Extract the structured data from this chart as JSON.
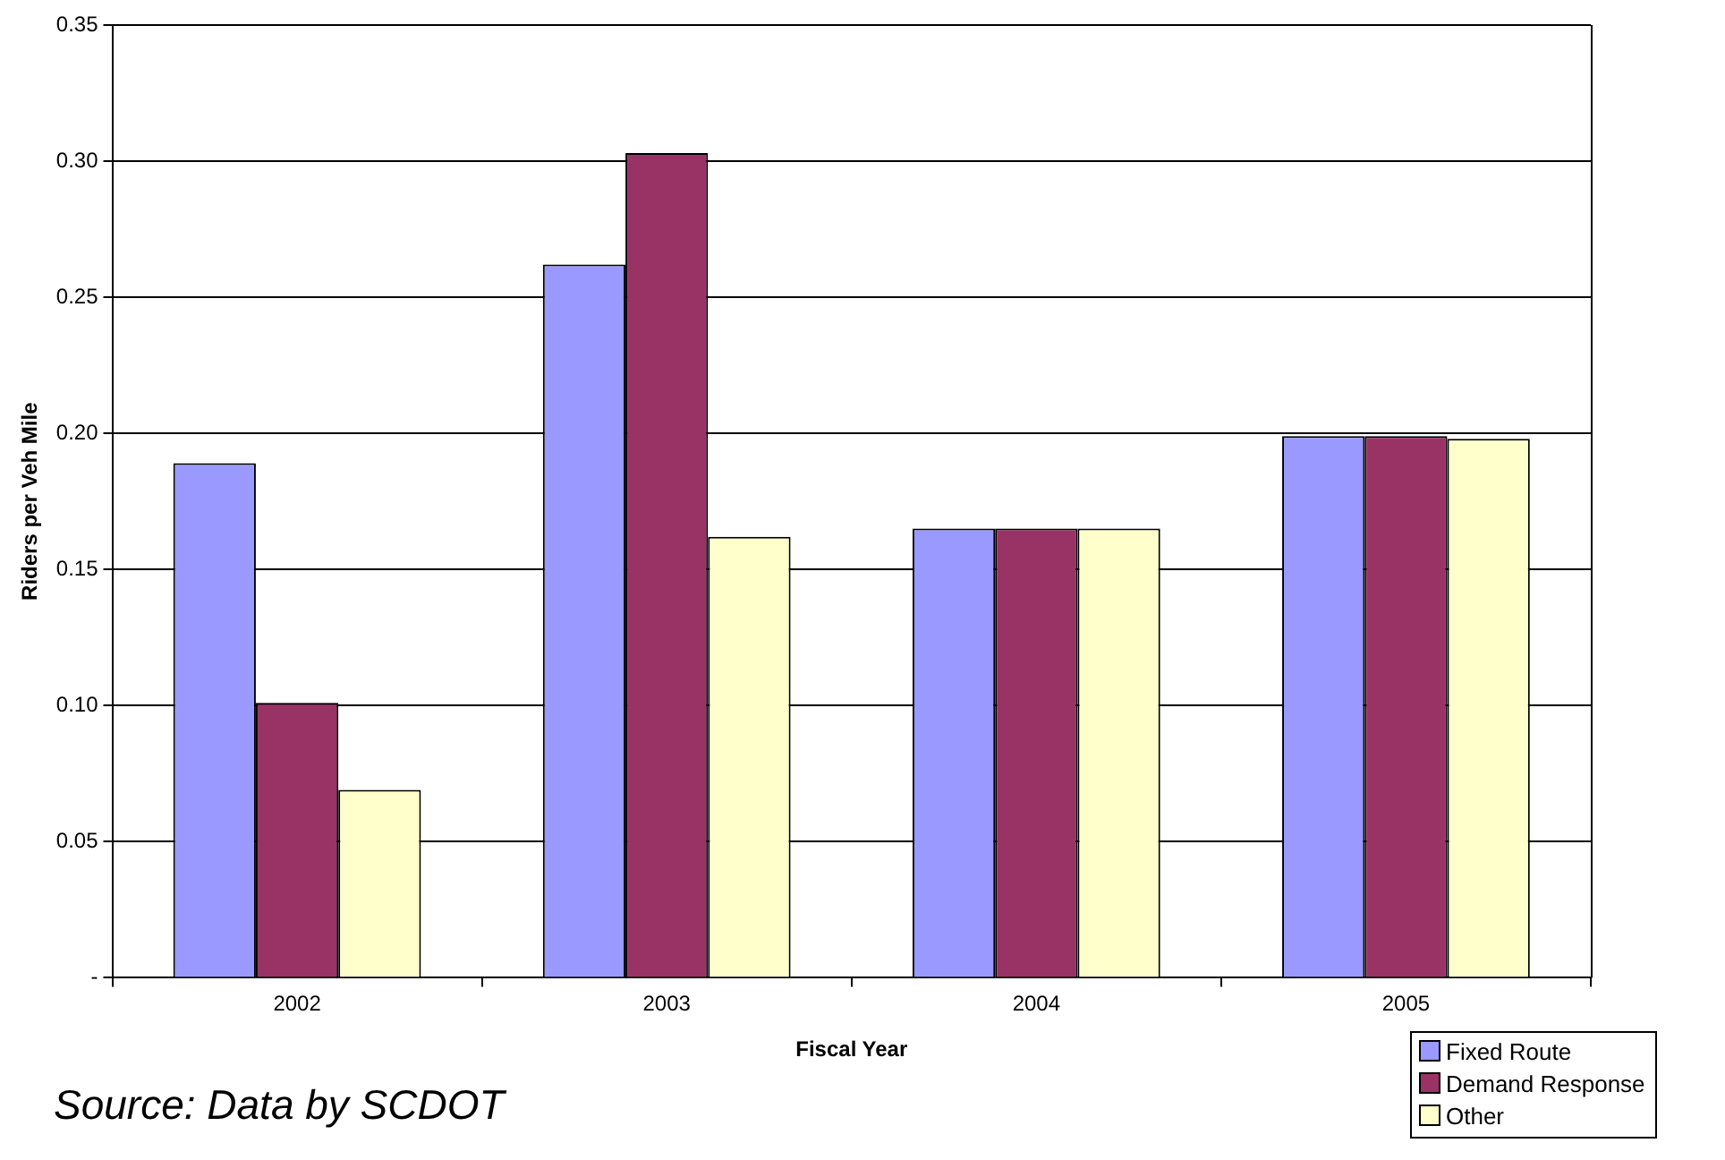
{
  "chart_data": {
    "type": "bar",
    "xlabel": "Fiscal Year",
    "ylabel": "Riders per Veh Mile",
    "categories": [
      "2002",
      "2003",
      "2004",
      "2005"
    ],
    "series": [
      {
        "name": "Fixed Route",
        "color": "#9999ff",
        "values": [
          0.189,
          0.262,
          0.165,
          0.199
        ]
      },
      {
        "name": "Demand Response",
        "color": "#993366",
        "values": [
          0.101,
          0.303,
          0.165,
          0.199
        ]
      },
      {
        "name": "Other",
        "color": "#ffffcc",
        "values": [
          0.069,
          0.162,
          0.165,
          0.198
        ]
      }
    ],
    "ylim": [
      0,
      0.35
    ],
    "yticks": [
      {
        "value": 0,
        "label": "-"
      },
      0.05,
      {
        "value": 0.1,
        "label": "0.10"
      },
      0.15,
      {
        "value": 0.2,
        "label": "0.20"
      },
      0.25,
      {
        "value": 0.3,
        "label": "0.30"
      },
      0.35
    ],
    "grid": "y",
    "legend": "bottom right",
    "annotations": [
      "Source: Data by SCDOT"
    ]
  }
}
